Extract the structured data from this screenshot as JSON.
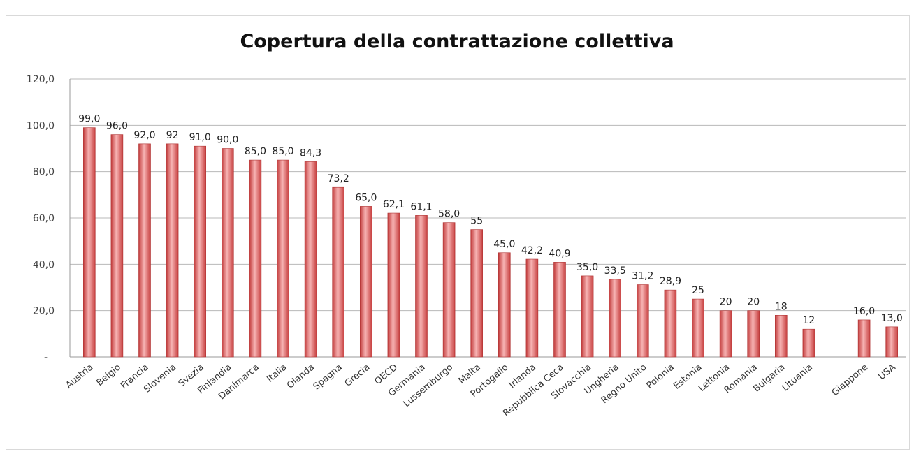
{
  "chart_data": {
    "type": "bar",
    "title": "Copertura della contrattazione collettiva",
    "xlabel": "",
    "ylabel": "",
    "ylim": [
      0,
      120
    ],
    "yticks": [
      "-",
      "20,0",
      "40,0",
      "60,0",
      "80,0",
      "100,0",
      "120,0"
    ],
    "grid": true,
    "legend": "none",
    "bar_color": "#e25b5b",
    "categories": [
      "Austria",
      "Belgio",
      "Francia",
      "Slovenia",
      "Svezia",
      "Finlandia",
      "Danimarca",
      "Italia",
      "Olanda",
      "Spagna",
      "Grecia",
      "OECD",
      "Germania",
      "Lussemburgo",
      "Malta",
      "Portogallo",
      "Irlanda",
      "Repubblica Ceca",
      "Slovacchia",
      "Ungheria",
      "Regno Unito",
      "Polonia",
      "Estonia",
      "Lettonia",
      "Romania",
      "Bulgaria",
      "Lituania",
      "",
      "Giappone",
      "USA"
    ],
    "values": [
      99.0,
      96.0,
      92.0,
      92,
      91.0,
      90.0,
      85.0,
      85.0,
      84.3,
      73.2,
      65.0,
      62.1,
      61.1,
      58.0,
      55,
      45.0,
      42.2,
      40.9,
      35.0,
      33.5,
      31.2,
      28.9,
      25,
      20,
      20,
      18,
      12,
      null,
      16.0,
      13.0
    ],
    "data_labels": [
      "99,0",
      "96,0",
      "92,0",
      "92",
      "91,0",
      "90,0",
      "85,0",
      "85,0",
      "84,3",
      "73,2",
      "65,0",
      "62,1",
      "61,1",
      "58,0",
      "55",
      "45,0",
      "42,2",
      "40,9",
      "35,0",
      "33,5",
      "31,2",
      "28,9",
      "25",
      "20",
      "20",
      "18",
      "12",
      "",
      "16,0",
      "13,0"
    ]
  }
}
